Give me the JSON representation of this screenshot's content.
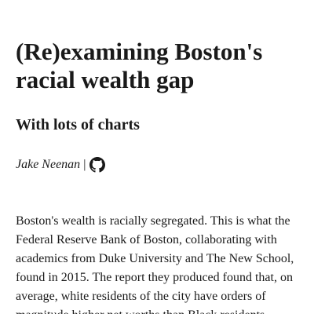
{
  "article": {
    "title": "(Re)examining Boston's racial wealth gap",
    "subtitle": "With lots of charts",
    "byline": {
      "author": "Jake Neenan",
      "separator": "|",
      "link_icon": "github-icon"
    },
    "paragraph": "Boston's wealth is racially segregated. This is what the Federal Reserve Bank of Boston, collaborating with academics from Duke University and The New School, found in 2015. The report they produced found that, on average, white residents of the city have orders of magnitude higher net worths than Black residents."
  }
}
